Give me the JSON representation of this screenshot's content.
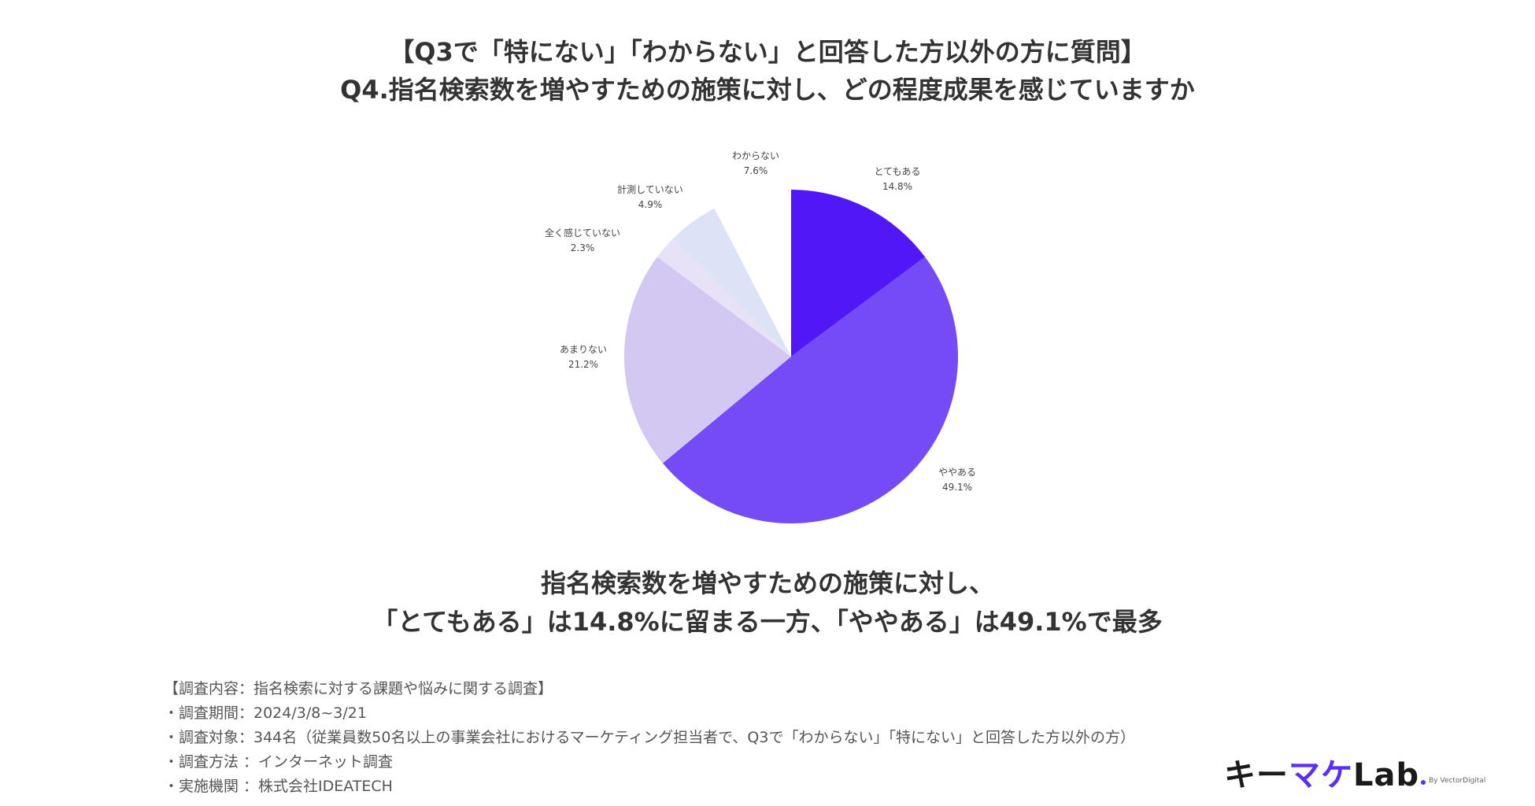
{
  "header": {
    "line1": "【Q3で「特にない」「わからない」と回答した方以外の方に質問】",
    "line2": "Q4.指名検索数を増やすための施策に対し、どの程度成果を感じていますか"
  },
  "chart_data": {
    "type": "pie",
    "slices": [
      {
        "label": "とてもある",
        "value": 14.8,
        "display": "14.8%",
        "color": "#5117f7"
      },
      {
        "label": "ややある",
        "value": 49.1,
        "display": "49.1%",
        "color": "#744bf7"
      },
      {
        "label": "あまりない",
        "value": 21.2,
        "display": "21.2%",
        "color": "#d2c8f1"
      },
      {
        "label": "全く感じていない",
        "value": 2.3,
        "display": "2.3%",
        "color": "#e8e2f7"
      },
      {
        "label": "計測していない",
        "value": 4.9,
        "display": "4.9%",
        "color": "#dde3f7"
      },
      {
        "label": "わからない",
        "value": 7.6,
        "display": "7.6%",
        "color": "#ffffff"
      }
    ],
    "start_angle_deg": 0,
    "direction": "clockwise",
    "label_color": "#444444"
  },
  "summary": {
    "line1": "指名検索数を増やすための施策に対し、",
    "line2": "「とてもある」は14.8%に留まる一方、「ややある」は49.1%で最多"
  },
  "notes": [
    "【調査内容：指名検索に対する課題や悩みに関する調査】",
    "・調査期間：2024/3/8~3/21",
    "・調査対象：344名（従業員数50名以上の事業会社におけるマーケティング担当者で、Q3で「わからない」「特にない」と回答した方以外の方）",
    "・調査方法 ：インターネット調査",
    "・実施機関 ：株式会社IDEATECH"
  ],
  "logo": {
    "name_part1": "キー",
    "name_accent": "マケ",
    "name_part2": "Lab",
    "by": "By VectorDigital"
  }
}
